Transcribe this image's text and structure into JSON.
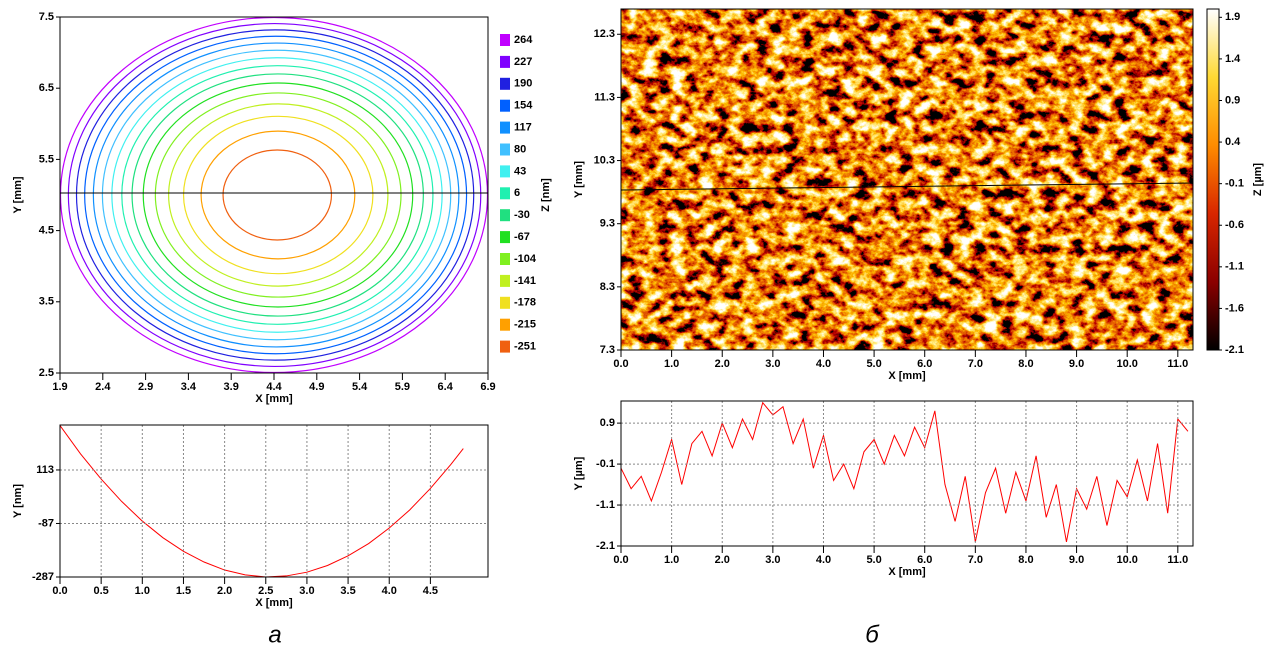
{
  "panel_labels": [
    "а",
    "б"
  ],
  "chart_data": [
    {
      "type": "contour",
      "xlabel": "X [mm]",
      "ylabel": "Y [mm]",
      "zlabel": "Z [nm]",
      "xlim": [
        1.9,
        6.9
      ],
      "xticks": [
        1.9,
        2.4,
        2.9,
        3.4,
        3.9,
        4.4,
        4.9,
        5.4,
        5.9,
        6.4,
        6.9
      ],
      "ylim": [
        2.5,
        7.5
      ],
      "yticks": [
        2.5,
        3.5,
        4.5,
        5.5,
        6.5,
        7.5
      ],
      "grid": false,
      "levels": [
        264,
        227,
        190,
        154,
        117,
        80,
        43,
        6,
        -30,
        -67,
        -104,
        -141,
        -178,
        -215,
        -251
      ],
      "colors": [
        "#c000ff",
        "#8000ff",
        "#2020e0",
        "#0060ff",
        "#1090ff",
        "#40c0ff",
        "#40f0f0",
        "#20f0b0",
        "#20e080",
        "#20e020",
        "#80f020",
        "#c0f020",
        "#f0e020",
        "#ffa000",
        "#f06010"
      ]
    },
    {
      "type": "line",
      "xlabel": "X [mm]",
      "ylabel": "Y [nm]",
      "color": "#ff0000",
      "grid": true,
      "xlim": [
        0,
        5.2
      ],
      "xticks": [
        {
          "value": 0,
          "label": "0.0"
        },
        0.5,
        {
          "value": 1,
          "label": "1.0"
        },
        1.5,
        {
          "value": 2,
          "label": "2.0"
        },
        2.5,
        {
          "value": 3,
          "label": "3.0"
        },
        3.5,
        {
          "value": 4,
          "label": "4.0"
        },
        4.5
      ],
      "ylim": [
        -287,
        281
      ],
      "yticks": [
        -287,
        -87,
        113
      ],
      "x": [
        0,
        0.25,
        0.5,
        0.75,
        1.0,
        1.25,
        1.5,
        1.75,
        2.0,
        2.25,
        2.5,
        2.75,
        3.0,
        3.25,
        3.5,
        3.75,
        4.0,
        4.25,
        4.5,
        4.75,
        4.9
      ],
      "values": [
        279,
        173,
        79,
        -5,
        -78,
        -140,
        -191,
        -231,
        -261,
        -279,
        -287,
        -283,
        -269,
        -244,
        -208,
        -162,
        -104,
        -36,
        44,
        134,
        193
      ]
    },
    {
      "type": "heatmap",
      "xlabel": "X [mm]",
      "ylabel": "Y [mm]",
      "zlabel": "Z [µm]",
      "xlim": [
        0,
        11.3
      ],
      "xticks": [
        {
          "value": 0,
          "label": "0.0"
        },
        {
          "value": 1,
          "label": "1.0"
        },
        {
          "value": 2,
          "label": "2.0"
        },
        {
          "value": 3,
          "label": "3.0"
        },
        {
          "value": 4,
          "label": "4.0"
        },
        {
          "value": 5,
          "label": "5.0"
        },
        {
          "value": 6,
          "label": "6.0"
        },
        {
          "value": 7,
          "label": "7.0"
        },
        {
          "value": 8,
          "label": "8.0"
        },
        {
          "value": 9,
          "label": "9.0"
        },
        {
          "value": 10,
          "label": "10.0"
        },
        {
          "value": 11,
          "label": "11.0"
        }
      ],
      "ylim": [
        7.3,
        12.7
      ],
      "yticks": [
        7.3,
        8.3,
        9.3,
        10.3,
        11.3,
        12.3
      ],
      "grid": false,
      "zlim": [
        -2.1,
        2.0
      ],
      "zticks": [
        -2.1,
        -1.6,
        -1.1,
        -0.6,
        -0.1,
        0.4,
        0.9,
        1.4,
        1.9
      ],
      "colormap": [
        "#000000",
        "#8b0000",
        "#d82600",
        "#ff8c00",
        "#ffd933",
        "#ffffff"
      ]
    },
    {
      "type": "line",
      "xlabel": "X [mm]",
      "ylabel": "Y [µm]",
      "color": "#ff0000",
      "grid": true,
      "xlim": [
        0,
        11.3
      ],
      "xticks": [
        {
          "value": 0,
          "label": "0.0"
        },
        {
          "value": 1,
          "label": "1.0"
        },
        {
          "value": 2,
          "label": "2.0"
        },
        {
          "value": 3,
          "label": "3.0"
        },
        {
          "value": 4,
          "label": "4.0"
        },
        {
          "value": 5,
          "label": "5.0"
        },
        {
          "value": 6,
          "label": "6.0"
        },
        {
          "value": 7,
          "label": "7.0"
        },
        {
          "value": 8,
          "label": "8.0"
        },
        {
          "value": 9,
          "label": "9.0"
        },
        {
          "value": 10,
          "label": "10.0"
        },
        {
          "value": 11,
          "label": "11.0"
        }
      ],
      "ylim": [
        -2.1,
        1.44
      ],
      "yticks": [
        -2.1,
        -1.1,
        -0.1,
        0.9
      ],
      "x": [
        0,
        0.2,
        0.4,
        0.6,
        0.8,
        1.0,
        1.2,
        1.4,
        1.6,
        1.8,
        2.0,
        2.2,
        2.4,
        2.6,
        2.8,
        3.0,
        3.2,
        3.4,
        3.6,
        3.8,
        4.0,
        4.2,
        4.4,
        4.6,
        4.8,
        5.0,
        5.2,
        5.4,
        5.6,
        5.8,
        6.0,
        6.2,
        6.4,
        6.6,
        6.8,
        7.0,
        7.2,
        7.4,
        7.6,
        7.8,
        8.0,
        8.2,
        8.4,
        8.6,
        8.8,
        9.0,
        9.2,
        9.4,
        9.6,
        9.8,
        10.0,
        10.2,
        10.4,
        10.6,
        10.8,
        11.0,
        11.2
      ],
      "values": [
        -0.2,
        -0.7,
        -0.4,
        -1.0,
        -0.3,
        0.5,
        -0.6,
        0.4,
        0.7,
        0.1,
        0.9,
        0.3,
        1.0,
        0.5,
        1.4,
        1.1,
        1.3,
        0.4,
        1.0,
        -0.2,
        0.6,
        -0.5,
        -0.1,
        -0.7,
        0.2,
        0.5,
        -0.1,
        0.6,
        0.1,
        0.8,
        0.3,
        1.2,
        -0.6,
        -1.5,
        -0.4,
        -2.0,
        -0.8,
        -0.2,
        -1.3,
        -0.3,
        -1.0,
        0.1,
        -1.4,
        -0.6,
        -2.0,
        -0.7,
        -1.2,
        -0.4,
        -1.6,
        -0.5,
        -0.9,
        0.0,
        -1.0,
        0.4,
        -1.3,
        1.0,
        0.7
      ]
    }
  ]
}
